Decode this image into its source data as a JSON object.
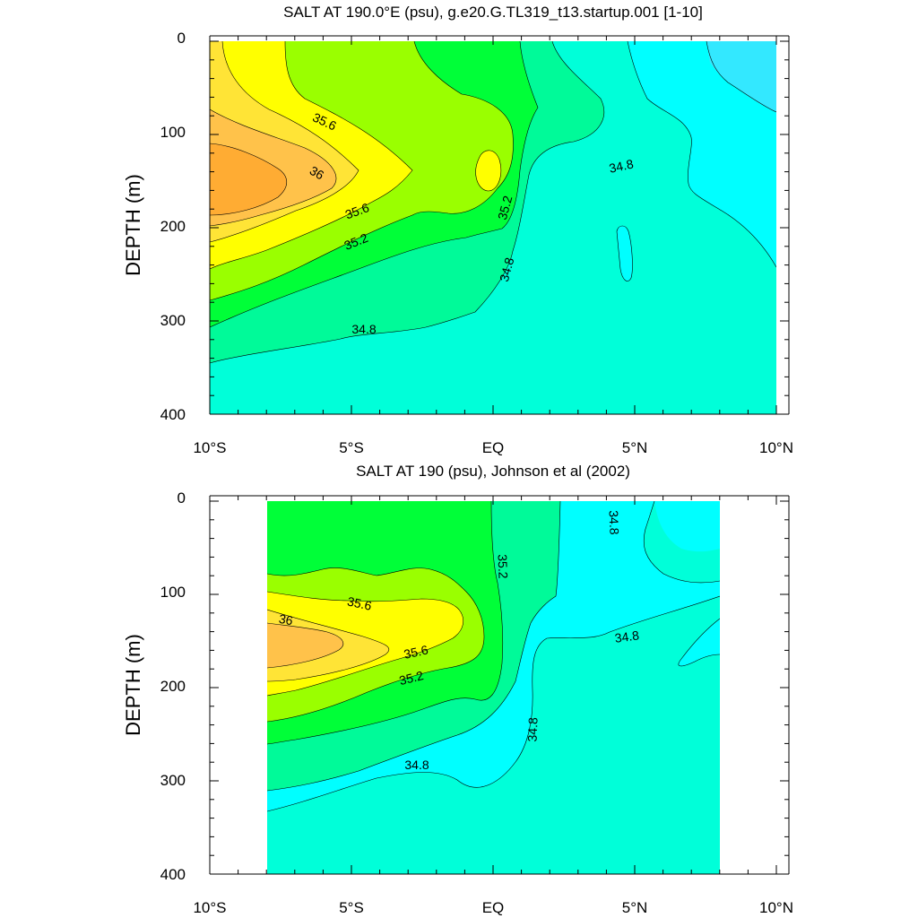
{
  "chart_data": [
    {
      "type": "contour",
      "title": "SALT AT 190.0°E (psu), g.e20.G.TL319_t13.startup.001 [1-10]",
      "ylabel": "DEPTH (m)",
      "x_ticks": [
        "10°S",
        "5°S",
        "EQ",
        "5°N",
        "10°N"
      ],
      "x_tick_values": [
        -10,
        -5,
        0,
        5,
        10
      ],
      "y_ticks": [
        "0",
        "100",
        "200",
        "300",
        "400"
      ],
      "y_tick_values": [
        0,
        100,
        200,
        300,
        400
      ],
      "xlim": [
        -10,
        10
      ],
      "ylim": [
        400,
        0
      ],
      "data_extent_lat": [
        -10,
        10
      ],
      "data_extent_depth": [
        5,
        400
      ],
      "levels": [
        34.6,
        34.8,
        35.0,
        35.2,
        35.4,
        35.6,
        35.8,
        36.0,
        36.2
      ],
      "level_labels": [
        {
          "text": "35.6",
          "lat": -6.3,
          "depth": 85
        },
        {
          "text": "36",
          "lat": -6.3,
          "depth": 143
        },
        {
          "text": "35.6",
          "lat": -4.9,
          "depth": 180
        },
        {
          "text": "35.2",
          "lat": -4.9,
          "depth": 215
        },
        {
          "text": "35.2",
          "lat": 0.7,
          "depth": 180
        },
        {
          "text": "34.8",
          "lat": 4.7,
          "depth": 140
        },
        {
          "text": "34.8",
          "lat": 0.7,
          "depth": 245
        },
        {
          "text": "34.8",
          "lat": -4.5,
          "depth": 315
        }
      ],
      "grid": false
    },
    {
      "type": "contour",
      "title": "SALT AT 190 (psu), Johnson et al (2002)",
      "ylabel": "DEPTH (m)",
      "x_ticks": [
        "10°S",
        "5°S",
        "EQ",
        "5°N",
        "10°N"
      ],
      "x_tick_values": [
        -10,
        -5,
        0,
        5,
        10
      ],
      "y_ticks": [
        "0",
        "100",
        "200",
        "300",
        "400"
      ],
      "y_tick_values": [
        0,
        100,
        200,
        300,
        400
      ],
      "xlim": [
        -10,
        10
      ],
      "ylim": [
        400,
        0
      ],
      "data_extent_lat": [
        -8,
        8
      ],
      "data_extent_depth": [
        5,
        400
      ],
      "levels": [
        34.6,
        34.8,
        35.0,
        35.2,
        35.4,
        35.6,
        35.8,
        36.0
      ],
      "level_labels": [
        {
          "text": "34.8",
          "lat": 4.2,
          "depth": 30
        },
        {
          "text": "35.2",
          "lat": 0.1,
          "depth": 75
        },
        {
          "text": "35.6",
          "lat": -4.8,
          "depth": 112
        },
        {
          "text": "36",
          "lat": -7.3,
          "depth": 133
        },
        {
          "text": "35.6",
          "lat": -2.7,
          "depth": 167
        },
        {
          "text": "35.2",
          "lat": -2.8,
          "depth": 190
        },
        {
          "text": "34.8",
          "lat": 4.8,
          "depth": 150
        },
        {
          "text": "34.8",
          "lat": 1.5,
          "depth": 245
        },
        {
          "text": "34.8",
          "lat": -2.6,
          "depth": 285
        }
      ],
      "grid": false
    }
  ],
  "colors": {
    "c34_6": "#00ffff",
    "c34_8": "#00ffd9",
    "c35_0": "#00fa99",
    "c35_2": "#00ff38",
    "c35_4": "#9aff00",
    "c35_6": "#ffff00",
    "c35_8": "#ffe436",
    "c36_0": "#ffc24a",
    "c36_2": "#ffac33",
    "deep_cyan": "#33e8ff"
  }
}
